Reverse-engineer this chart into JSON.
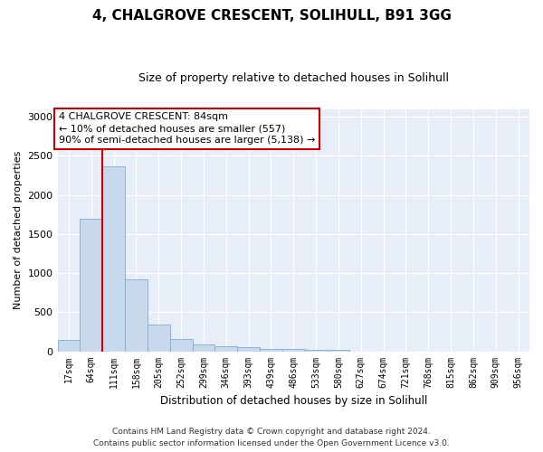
{
  "title": "4, CHALGROVE CRESCENT, SOLIHULL, B91 3GG",
  "subtitle": "Size of property relative to detached houses in Solihull",
  "xlabel": "Distribution of detached houses by size in Solihull",
  "ylabel": "Number of detached properties",
  "categories": [
    "17sqm",
    "64sqm",
    "111sqm",
    "158sqm",
    "205sqm",
    "252sqm",
    "299sqm",
    "346sqm",
    "393sqm",
    "439sqm",
    "486sqm",
    "533sqm",
    "580sqm",
    "627sqm",
    "674sqm",
    "721sqm",
    "768sqm",
    "815sqm",
    "862sqm",
    "909sqm",
    "956sqm"
  ],
  "bar_heights": [
    140,
    1700,
    2370,
    920,
    340,
    160,
    90,
    65,
    50,
    35,
    25,
    20,
    18,
    0,
    0,
    0,
    0,
    0,
    0,
    0,
    0
  ],
  "bar_color": "#c8d9ee",
  "bar_edge_color": "#7bafd4",
  "background_color": "#e8eef8",
  "grid_color": "#ffffff",
  "vline_x": 1.5,
  "vline_color": "#cc0000",
  "annotation_text": "4 CHALGROVE CRESCENT: 84sqm\n← 10% of detached houses are smaller (557)\n90% of semi-detached houses are larger (5,138) →",
  "annotation_box_edgecolor": "#cc0000",
  "ylim": [
    0,
    3100
  ],
  "yticks": [
    0,
    500,
    1000,
    1500,
    2000,
    2500,
    3000
  ],
  "footer_line1": "Contains HM Land Registry data © Crown copyright and database right 2024.",
  "footer_line2": "Contains public sector information licensed under the Open Government Licence v3.0.",
  "title_fontsize": 11,
  "subtitle_fontsize": 9
}
